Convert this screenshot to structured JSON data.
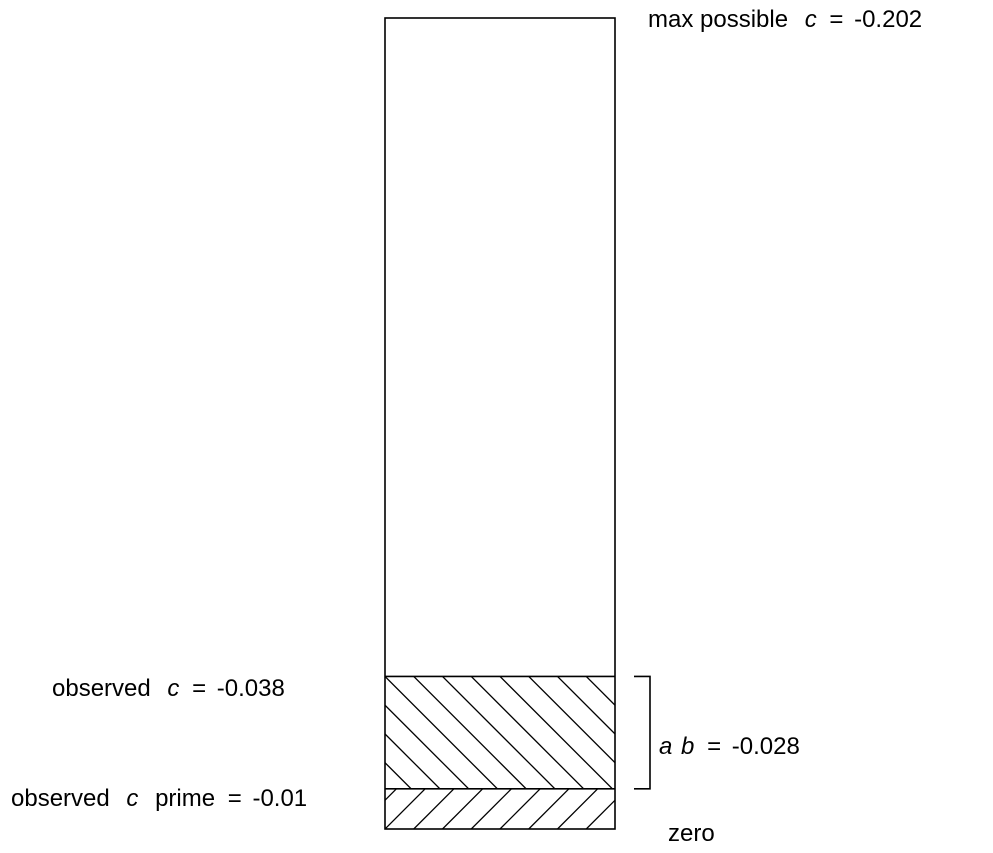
{
  "chart_data": {
    "type": "bar",
    "segments": [
      {
        "key": "observed_c_prime",
        "from": 0,
        "to": -0.01,
        "hatch": "forward"
      },
      {
        "key": "ab",
        "from": -0.01,
        "to": -0.038,
        "hatch": "back"
      },
      {
        "key": "remainder",
        "from": -0.038,
        "to": -0.202,
        "hatch": "none"
      }
    ],
    "values": {
      "max_possible_c": -0.202,
      "observed_c": -0.038,
      "observed_c_prime": -0.01,
      "ab": -0.028,
      "zero": 0
    },
    "labels": {
      "max": {
        "prefix": "max possible",
        "var": "c",
        "eq": "=",
        "value": "-0.202"
      },
      "observed_c": {
        "prefix": "observed",
        "var": "c",
        "eq": "=",
        "value": "-0.038"
      },
      "observed_c_prime": {
        "prefix": "observed",
        "var": "c",
        "suffix": "prime",
        "eq": "=",
        "value": "-0.01"
      },
      "ab": {
        "var1": "a",
        "var2": "b",
        "eq": "=",
        "value": "-0.028"
      },
      "zero": "zero"
    }
  }
}
